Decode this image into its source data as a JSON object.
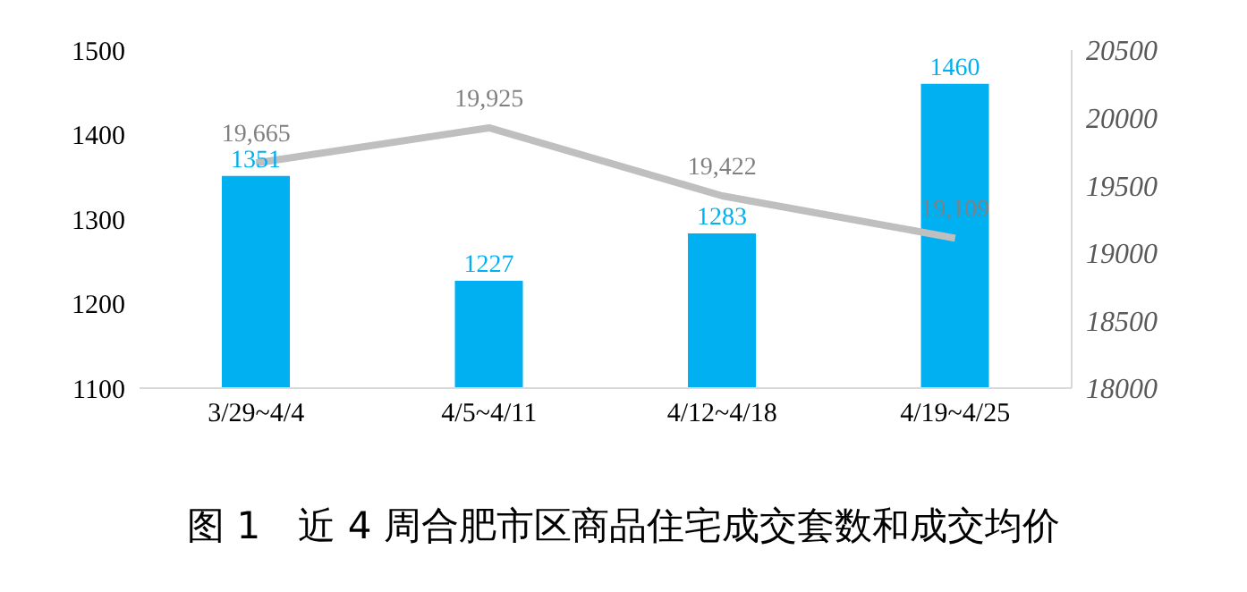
{
  "chart_data": {
    "type": "bar",
    "title": "图 1　近 4 周合肥市区商品住宅成交套数和成交均价",
    "categories": [
      "3/29~4/4",
      "4/5~4/11",
      "4/12~4/18",
      "4/19~4/25"
    ],
    "series": [
      {
        "color": "#00b0f0",
        "values": [
          1351,
          1227,
          1283,
          1460
        ]
      },
      {
        "type": "line",
        "axis": "y2",
        "color": "#bfbfbf",
        "values": [
          19665,
          19925,
          19422,
          19109
        ],
        "value_labels": [
          "19,665",
          "19,925",
          "19,422",
          "19,109"
        ]
      }
    ],
    "ylim": [
      1100,
      1500
    ],
    "yticks": [
      1100,
      1200,
      1300,
      1400,
      1500
    ],
    "y2lim": [
      18000,
      20500
    ],
    "y2ticks": [
      18000,
      18500,
      19000,
      19500,
      20000,
      20500
    ],
    "data_labels": true,
    "grid": false,
    "legend": false
  }
}
